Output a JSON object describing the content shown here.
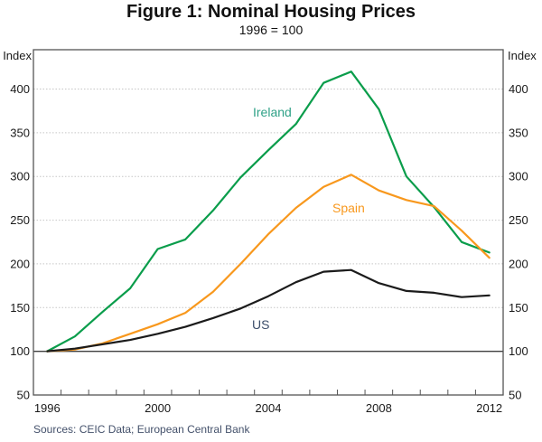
{
  "figure": {
    "title": "Figure 1: Nominal Housing Prices",
    "subtitle": "1996 = 100",
    "axis_unit_left": "Index",
    "axis_unit_right": "Index",
    "sources": "Sources: CEIC Data; European Central Bank"
  },
  "chart_data": {
    "type": "line",
    "title": "Figure 1: Nominal Housing Prices",
    "subtitle": "1996 = 100",
    "ylabel": "Index",
    "ylim": [
      50,
      445
    ],
    "yticks": [
      50,
      100,
      150,
      200,
      250,
      300,
      350,
      400
    ],
    "baseline_value": 100,
    "grid": "horizontal-dotted",
    "legend": "inline-labels",
    "x": [
      1996,
      1997,
      1998,
      1999,
      2000,
      2001,
      2002,
      2003,
      2004,
      2005,
      2006,
      2007,
      2008,
      2009,
      2010,
      2011,
      2012
    ],
    "xtick_labels": [
      1996,
      2000,
      2004,
      2008,
      2012
    ],
    "axis_color": "#1a1a1a",
    "gridline_color": "#c6c6c6",
    "border_color": "#555555",
    "baseline_color": "#3f3f3f",
    "series": [
      {
        "name": "Ireland",
        "color": "#0a9d4b",
        "label_color": "#2fa187",
        "label_pos": {
          "x": 280,
          "y": 116
        },
        "values": [
          100,
          117,
          145,
          172,
          217,
          228,
          261,
          299,
          330,
          360,
          407,
          420,
          377,
          300,
          265,
          225,
          213
        ]
      },
      {
        "name": "Spain",
        "color": "#f8981d",
        "label_color": "#f8981d",
        "label_pos": {
          "x": 368,
          "y": 222
        },
        "values": [
          100,
          102,
          109,
          120,
          131,
          144,
          168,
          200,
          234,
          264,
          288,
          302,
          284,
          273,
          266,
          238,
          207
        ]
      },
      {
        "name": "US",
        "color": "#1b1b1b",
        "label_color": "#3d4f6b",
        "label_pos": {
          "x": 279,
          "y": 351
        },
        "values": [
          100,
          103,
          108,
          113,
          120,
          128,
          138,
          149,
          163,
          179,
          191,
          193,
          178,
          169,
          167,
          162,
          164
        ]
      }
    ],
    "sources": "Sources: CEIC Data; European Central Bank"
  }
}
